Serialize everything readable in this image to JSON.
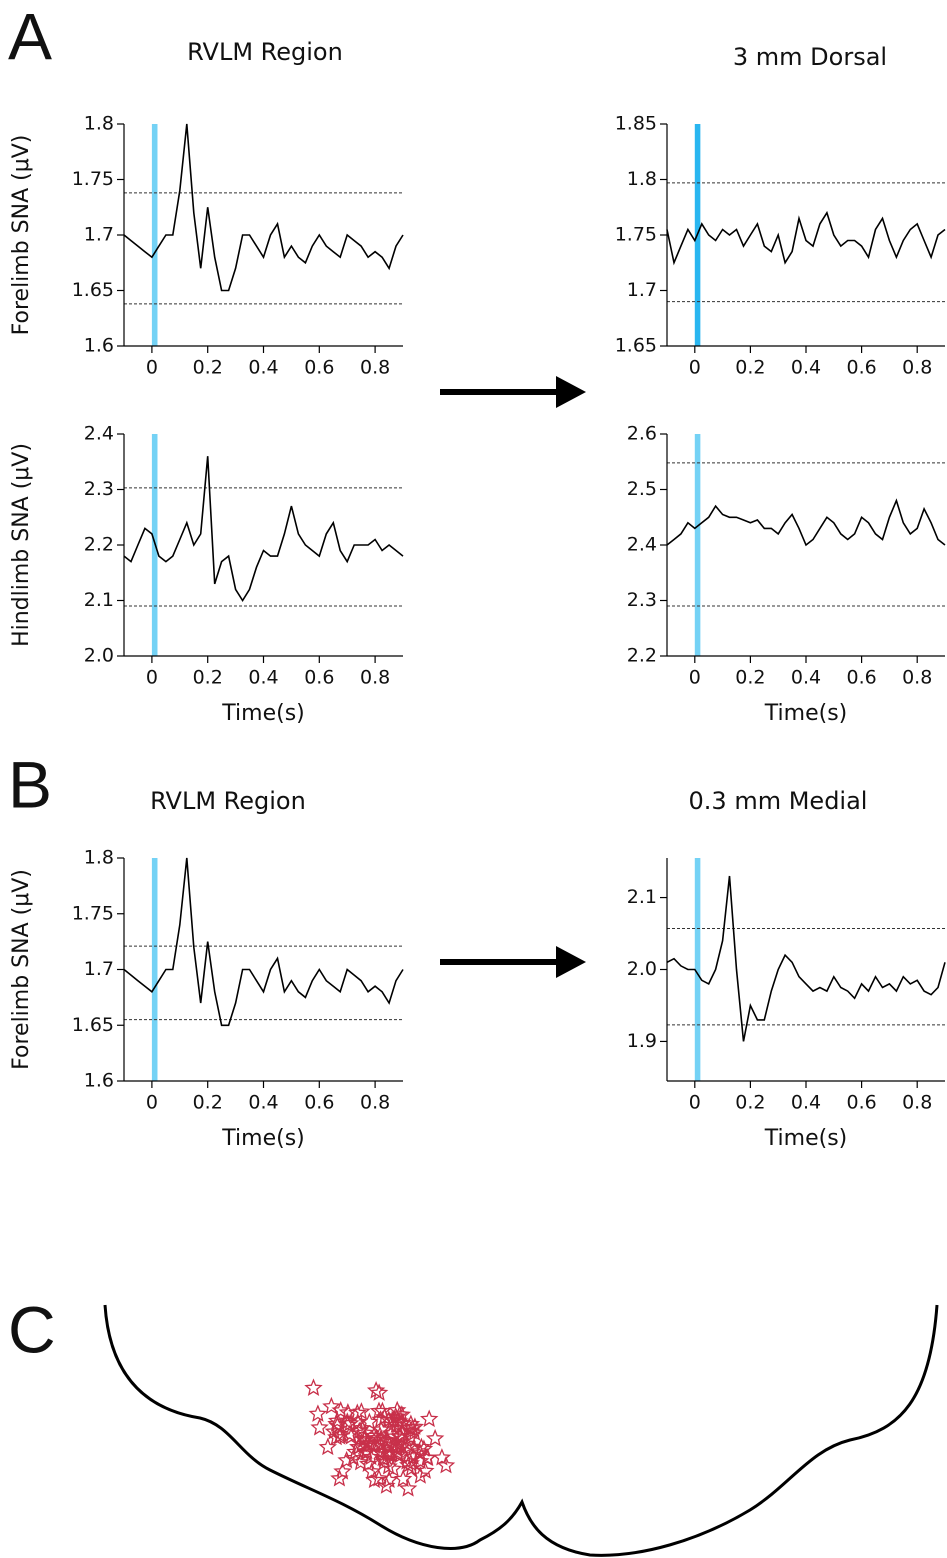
{
  "panel_labels": [
    "A",
    "B",
    "C"
  ],
  "chart_data": [
    {
      "type": "line",
      "title": "RVLM Region",
      "ylabel": "Forelimb SNA (μV)",
      "x": [
        -0.1,
        -0.075,
        -0.05,
        -0.025,
        0,
        0.025,
        0.05,
        0.075,
        0.1,
        0.125,
        0.15,
        0.175,
        0.2,
        0.225,
        0.25,
        0.275,
        0.3,
        0.325,
        0.35,
        0.375,
        0.4,
        0.425,
        0.45,
        0.475,
        0.5,
        0.525,
        0.55,
        0.575,
        0.6,
        0.625,
        0.65,
        0.675,
        0.7,
        0.725,
        0.75,
        0.775,
        0.8,
        0.825,
        0.85,
        0.875,
        0.9
      ],
      "values": [
        1.7,
        1.695,
        1.69,
        1.685,
        1.68,
        1.69,
        1.7,
        1.7,
        1.74,
        1.8,
        1.72,
        1.67,
        1.725,
        1.68,
        1.65,
        1.65,
        1.67,
        1.7,
        1.7,
        1.69,
        1.68,
        1.7,
        1.71,
        1.68,
        1.69,
        1.68,
        1.675,
        1.69,
        1.7,
        1.69,
        1.685,
        1.68,
        1.7,
        1.695,
        1.69,
        1.68,
        1.685,
        1.68,
        1.67,
        1.69,
        1.7
      ],
      "color": "#000000",
      "xlim": [
        -0.1,
        0.9
      ],
      "xticks": [
        0,
        0.2,
        0.4,
        0.6,
        0.8
      ],
      "ylim": [
        1.6,
        1.8
      ],
      "yticks": [
        1.6,
        1.65,
        1.7,
        1.75,
        1.8
      ],
      "threshold_lines": [
        1.738,
        1.638
      ],
      "stimulus": [
        0,
        0.02
      ],
      "stimulus_color": "#74d2f5"
    },
    {
      "type": "line",
      "title": "3 mm Dorsal",
      "x": [
        -0.1,
        -0.075,
        -0.05,
        -0.025,
        0,
        0.025,
        0.05,
        0.075,
        0.1,
        0.125,
        0.15,
        0.175,
        0.2,
        0.225,
        0.25,
        0.275,
        0.3,
        0.325,
        0.35,
        0.375,
        0.4,
        0.425,
        0.45,
        0.475,
        0.5,
        0.525,
        0.55,
        0.575,
        0.6,
        0.625,
        0.65,
        0.675,
        0.7,
        0.725,
        0.75,
        0.775,
        0.8,
        0.825,
        0.85,
        0.875,
        0.9
      ],
      "values": [
        1.755,
        1.725,
        1.74,
        1.755,
        1.745,
        1.76,
        1.75,
        1.745,
        1.755,
        1.75,
        1.755,
        1.74,
        1.75,
        1.76,
        1.74,
        1.735,
        1.75,
        1.725,
        1.735,
        1.765,
        1.745,
        1.74,
        1.76,
        1.77,
        1.75,
        1.74,
        1.745,
        1.745,
        1.74,
        1.73,
        1.755,
        1.765,
        1.745,
        1.73,
        1.745,
        1.755,
        1.76,
        1.745,
        1.73,
        1.75,
        1.755
      ],
      "color": "#000000",
      "xlim": [
        -0.1,
        0.9
      ],
      "xticks": [
        0,
        0.2,
        0.4,
        0.6,
        0.8
      ],
      "ylim": [
        1.65,
        1.85
      ],
      "yticks": [
        1.65,
        1.7,
        1.75,
        1.8,
        1.85
      ],
      "threshold_lines": [
        1.797,
        1.69
      ],
      "stimulus": [
        0,
        0.02
      ],
      "stimulus_color": "#29b6f0"
    },
    {
      "type": "line",
      "ylabel": "Hindlimb SNA (μV)",
      "xlabel": "Time(s)",
      "x": [
        -0.1,
        -0.075,
        -0.05,
        -0.025,
        0,
        0.025,
        0.05,
        0.075,
        0.1,
        0.125,
        0.15,
        0.175,
        0.2,
        0.225,
        0.25,
        0.275,
        0.3,
        0.325,
        0.35,
        0.375,
        0.4,
        0.425,
        0.45,
        0.475,
        0.5,
        0.525,
        0.55,
        0.575,
        0.6,
        0.625,
        0.65,
        0.675,
        0.7,
        0.725,
        0.75,
        0.775,
        0.8,
        0.825,
        0.85,
        0.875,
        0.9
      ],
      "values": [
        2.18,
        2.17,
        2.2,
        2.23,
        2.22,
        2.18,
        2.17,
        2.18,
        2.21,
        2.24,
        2.2,
        2.22,
        2.36,
        2.13,
        2.17,
        2.18,
        2.12,
        2.1,
        2.12,
        2.16,
        2.19,
        2.18,
        2.18,
        2.22,
        2.27,
        2.22,
        2.2,
        2.19,
        2.18,
        2.22,
        2.24,
        2.19,
        2.17,
        2.2,
        2.2,
        2.2,
        2.21,
        2.19,
        2.2,
        2.19,
        2.18
      ],
      "color": "#000000",
      "xlim": [
        -0.1,
        0.9
      ],
      "xticks": [
        0,
        0.2,
        0.4,
        0.6,
        0.8
      ],
      "ylim": [
        2.0,
        2.4
      ],
      "yticks": [
        {
          "value": 2,
          "label": "2.0"
        },
        2.1,
        2.2,
        2.3,
        2.4
      ],
      "threshold_lines": [
        2.303,
        2.09
      ],
      "stimulus": [
        0,
        0.02
      ],
      "stimulus_color": "#74d2f5"
    },
    {
      "type": "line",
      "xlabel": "Time(s)",
      "x": [
        -0.1,
        -0.075,
        -0.05,
        -0.025,
        0,
        0.025,
        0.05,
        0.075,
        0.1,
        0.125,
        0.15,
        0.175,
        0.2,
        0.225,
        0.25,
        0.275,
        0.3,
        0.325,
        0.35,
        0.375,
        0.4,
        0.425,
        0.45,
        0.475,
        0.5,
        0.525,
        0.55,
        0.575,
        0.6,
        0.625,
        0.65,
        0.675,
        0.7,
        0.725,
        0.75,
        0.775,
        0.8,
        0.825,
        0.85,
        0.875,
        0.9
      ],
      "values": [
        2.4,
        2.41,
        2.42,
        2.44,
        2.43,
        2.44,
        2.45,
        2.47,
        2.455,
        2.45,
        2.45,
        2.445,
        2.44,
        2.445,
        2.43,
        2.43,
        2.42,
        2.44,
        2.455,
        2.43,
        2.4,
        2.41,
        2.43,
        2.45,
        2.44,
        2.42,
        2.41,
        2.42,
        2.45,
        2.44,
        2.42,
        2.41,
        2.45,
        2.48,
        2.44,
        2.42,
        2.43,
        2.465,
        2.44,
        2.41,
        2.4
      ],
      "color": "#000000",
      "xlim": [
        -0.1,
        0.9
      ],
      "xticks": [
        0,
        0.2,
        0.4,
        0.6,
        0.8
      ],
      "ylim": [
        2.2,
        2.6
      ],
      "yticks": [
        2.2,
        2.3,
        2.4,
        2.5,
        2.6
      ],
      "threshold_lines": [
        2.548,
        2.29
      ],
      "stimulus": [
        0,
        0.02
      ],
      "stimulus_color": "#74d2f5"
    },
    {
      "type": "line",
      "title": "RVLM Region",
      "ylabel": "Forelimb SNA (μV)",
      "xlabel": "Time(s)",
      "x": [
        -0.1,
        -0.075,
        -0.05,
        -0.025,
        0,
        0.025,
        0.05,
        0.075,
        0.1,
        0.125,
        0.15,
        0.175,
        0.2,
        0.225,
        0.25,
        0.275,
        0.3,
        0.325,
        0.35,
        0.375,
        0.4,
        0.425,
        0.45,
        0.475,
        0.5,
        0.525,
        0.55,
        0.575,
        0.6,
        0.625,
        0.65,
        0.675,
        0.7,
        0.725,
        0.75,
        0.775,
        0.8,
        0.825,
        0.85,
        0.875,
        0.9
      ],
      "values": [
        1.7,
        1.695,
        1.69,
        1.685,
        1.68,
        1.69,
        1.7,
        1.7,
        1.74,
        1.8,
        1.72,
        1.67,
        1.725,
        1.68,
        1.65,
        1.65,
        1.67,
        1.7,
        1.7,
        1.69,
        1.68,
        1.7,
        1.71,
        1.68,
        1.69,
        1.68,
        1.675,
        1.69,
        1.7,
        1.69,
        1.685,
        1.68,
        1.7,
        1.695,
        1.69,
        1.68,
        1.685,
        1.68,
        1.67,
        1.69,
        1.7
      ],
      "color": "#000000",
      "xlim": [
        -0.1,
        0.9
      ],
      "xticks": [
        0,
        0.2,
        0.4,
        0.6,
        0.8
      ],
      "ylim": [
        1.6,
        1.8
      ],
      "yticks": [
        1.6,
        1.65,
        1.7,
        1.75,
        1.8
      ],
      "threshold_lines": [
        1.721,
        1.655
      ],
      "stimulus": [
        0,
        0.02
      ],
      "stimulus_color": "#74d2f5"
    },
    {
      "type": "line",
      "title": "0.3 mm Medial",
      "xlabel": "Time(s)",
      "x": [
        -0.1,
        -0.075,
        -0.05,
        -0.025,
        0,
        0.025,
        0.05,
        0.075,
        0.1,
        0.125,
        0.15,
        0.175,
        0.2,
        0.225,
        0.25,
        0.275,
        0.3,
        0.325,
        0.35,
        0.375,
        0.4,
        0.425,
        0.45,
        0.475,
        0.5,
        0.525,
        0.55,
        0.575,
        0.6,
        0.625,
        0.65,
        0.675,
        0.7,
        0.725,
        0.75,
        0.775,
        0.8,
        0.825,
        0.85,
        0.875,
        0.9
      ],
      "values": [
        2.01,
        2.015,
        2.005,
        2.0,
        2.0,
        1.985,
        1.98,
        2.0,
        2.04,
        2.13,
        2.0,
        1.9,
        1.95,
        1.93,
        1.93,
        1.97,
        2.0,
        2.02,
        2.01,
        1.99,
        1.98,
        1.97,
        1.975,
        1.97,
        1.99,
        1.975,
        1.97,
        1.96,
        1.98,
        1.97,
        1.99,
        1.975,
        1.98,
        1.97,
        1.99,
        1.98,
        1.985,
        1.97,
        1.965,
        1.975,
        2.01
      ],
      "color": "#000000",
      "xlim": [
        -0.1,
        0.9
      ],
      "xticks": [
        0,
        0.2,
        0.4,
        0.6,
        0.8
      ],
      "ylim": [
        1.845,
        2.155
      ],
      "yticks": [
        1.9,
        {
          "value": 2,
          "label": "2.0"
        },
        2.1
      ],
      "threshold_lines": [
        2.057,
        1.923
      ],
      "stimulus": [
        0,
        0.02
      ],
      "stimulus_color": "#74d2f5"
    }
  ]
}
